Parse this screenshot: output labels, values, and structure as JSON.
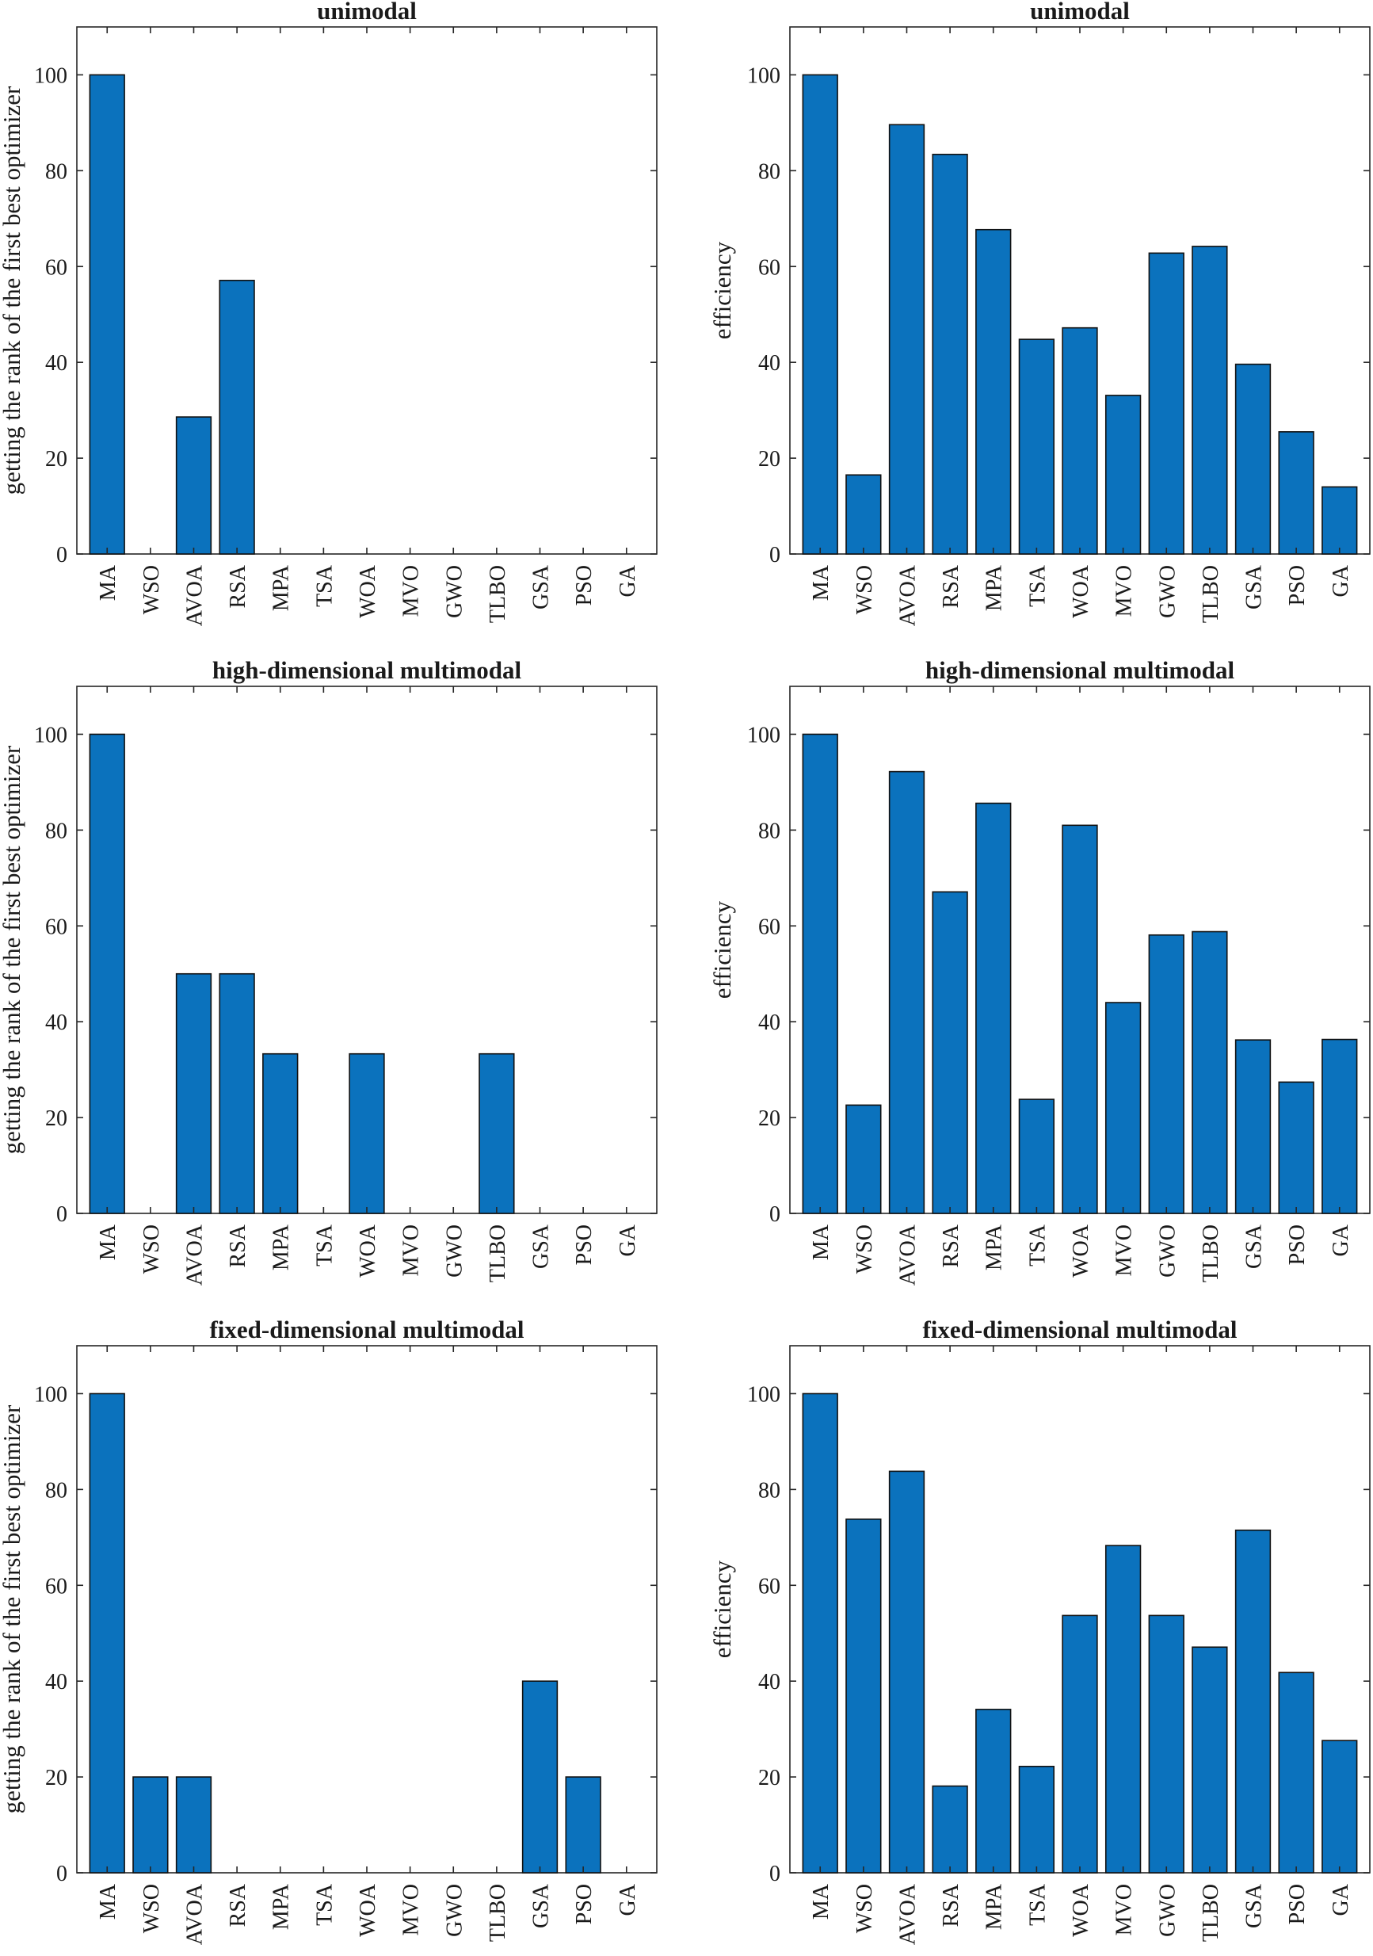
{
  "chart_data": [
    {
      "type": "bar",
      "title": "unimodal",
      "ylabel": "getting the rank of the first best optimizer",
      "xlabel": "",
      "ylim": [
        0,
        110
      ],
      "yticks": [
        0,
        20,
        40,
        60,
        80,
        100
      ],
      "categories": [
        "MA",
        "WSO",
        "AVOA",
        "RSA",
        "MPA",
        "TSA",
        "WOA",
        "MVO",
        "GWO",
        "TLBO",
        "GSA",
        "PSO",
        "GA"
      ],
      "values": [
        100,
        0,
        28.6,
        57.1,
        0,
        0,
        0,
        0,
        0,
        0,
        0,
        0,
        0
      ],
      "color": "#0b72bd"
    },
    {
      "type": "bar",
      "title": "unimodal",
      "ylabel": "efficiency",
      "xlabel": "",
      "ylim": [
        0,
        110
      ],
      "yticks": [
        0,
        20,
        40,
        60,
        80,
        100
      ],
      "categories": [
        "MA",
        "WSO",
        "AVOA",
        "RSA",
        "MPA",
        "TSA",
        "WOA",
        "MVO",
        "GWO",
        "TLBO",
        "GSA",
        "PSO",
        "GA"
      ],
      "values": [
        100,
        16.5,
        89.6,
        83.4,
        67.7,
        44.8,
        47.2,
        33.1,
        62.8,
        64.2,
        39.6,
        25.5,
        14.0
      ],
      "color": "#0b72bd"
    },
    {
      "type": "bar",
      "title": "high-dimensional multimodal",
      "ylabel": "getting the rank of the first best optimizer",
      "xlabel": "",
      "ylim": [
        0,
        110
      ],
      "yticks": [
        0,
        20,
        40,
        60,
        80,
        100
      ],
      "categories": [
        "MA",
        "WSO",
        "AVOA",
        "RSA",
        "MPA",
        "TSA",
        "WOA",
        "MVO",
        "GWO",
        "TLBO",
        "GSA",
        "PSO",
        "GA"
      ],
      "values": [
        100,
        0,
        50,
        50,
        33.3,
        0,
        33.3,
        0,
        0,
        33.3,
        0,
        0,
        0
      ],
      "color": "#0b72bd"
    },
    {
      "type": "bar",
      "title": "high-dimensional multimodal",
      "ylabel": "efficiency",
      "xlabel": "",
      "ylim": [
        0,
        110
      ],
      "yticks": [
        0,
        20,
        40,
        60,
        80,
        100
      ],
      "categories": [
        "MA",
        "WSO",
        "AVOA",
        "RSA",
        "MPA",
        "TSA",
        "WOA",
        "MVO",
        "GWO",
        "TLBO",
        "GSA",
        "PSO",
        "GA"
      ],
      "values": [
        100,
        22.6,
        92.2,
        67.1,
        85.6,
        23.8,
        81.0,
        44.0,
        58.1,
        58.8,
        36.2,
        27.4,
        36.3
      ],
      "color": "#0b72bd"
    },
    {
      "type": "bar",
      "title": "fixed-dimensional multimodal",
      "ylabel": "getting the rank of the first best optimizer",
      "xlabel": "",
      "ylim": [
        0,
        110
      ],
      "yticks": [
        0,
        20,
        40,
        60,
        80,
        100
      ],
      "categories": [
        "MA",
        "WSO",
        "AVOA",
        "RSA",
        "MPA",
        "TSA",
        "WOA",
        "MVO",
        "GWO",
        "TLBO",
        "GSA",
        "PSO",
        "GA"
      ],
      "values": [
        100,
        20,
        20,
        0,
        0,
        0,
        0,
        0,
        0,
        0,
        40,
        20,
        0
      ],
      "color": "#0b72bd"
    },
    {
      "type": "bar",
      "title": "fixed-dimensional multimodal",
      "ylabel": "efficiency",
      "xlabel": "",
      "ylim": [
        0,
        110
      ],
      "yticks": [
        0,
        20,
        40,
        60,
        80,
        100
      ],
      "categories": [
        "MA",
        "WSO",
        "AVOA",
        "RSA",
        "MPA",
        "TSA",
        "WOA",
        "MVO",
        "GWO",
        "TLBO",
        "GSA",
        "PSO",
        "GA"
      ],
      "values": [
        100,
        73.8,
        83.8,
        18.1,
        34.1,
        22.2,
        53.7,
        68.3,
        53.7,
        47.1,
        71.5,
        41.8,
        27.6
      ],
      "color": "#0b72bd"
    }
  ]
}
